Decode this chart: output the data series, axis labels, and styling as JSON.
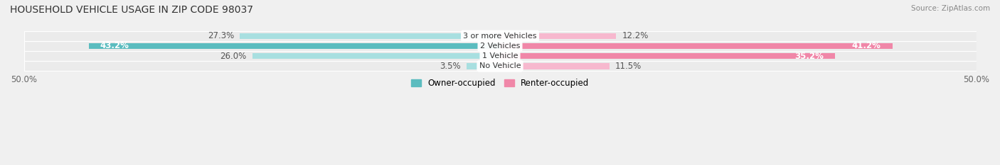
{
  "title": "HOUSEHOLD VEHICLE USAGE IN ZIP CODE 98037",
  "source": "Source: ZipAtlas.com",
  "categories": [
    "No Vehicle",
    "1 Vehicle",
    "2 Vehicles",
    "3 or more Vehicles"
  ],
  "owner_values": [
    3.5,
    26.0,
    43.2,
    27.3
  ],
  "renter_values": [
    11.5,
    35.2,
    41.2,
    12.2
  ],
  "owner_color": "#5bbcbf",
  "renter_color": "#f087a8",
  "owner_light_color": "#a8dfe0",
  "renter_light_color": "#f7b8ce",
  "axis_max": 50.0,
  "background_color": "#f0f0f0",
  "legend_owner": "Owner-occupied",
  "legend_renter": "Renter-occupied",
  "title_fontsize": 10,
  "label_fontsize": 8.5,
  "category_fontsize": 8.0,
  "axis_fontsize": 8.5
}
